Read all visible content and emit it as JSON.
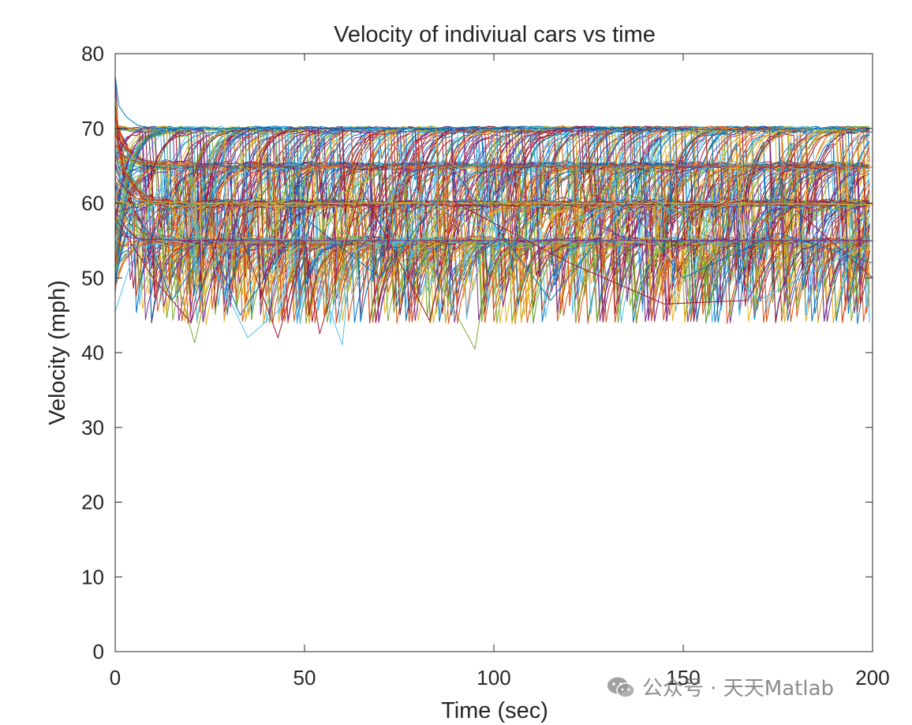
{
  "chart_data": {
    "type": "line",
    "title": "Velocity of indiviual cars vs time",
    "xlabel": "Time (sec)",
    "ylabel": "Velocity (mph)",
    "xlim": [
      0,
      200
    ],
    "ylim": [
      0,
      80
    ],
    "xticks": [
      0,
      50,
      100,
      150,
      200
    ],
    "yticks": [
      0,
      10,
      20,
      30,
      40,
      50,
      60,
      70,
      80
    ],
    "grid": false,
    "legend": "none",
    "series_count_note": "many overlapping car velocity traces",
    "colors": [
      "#0072BD",
      "#D95319",
      "#EDB120",
      "#7E2F8E",
      "#77AC30",
      "#4DBEEE",
      "#A2142F"
    ],
    "plateaus": [
      70,
      65,
      60,
      55
    ],
    "series": [
      {
        "x": [
          0,
          1,
          3,
          6,
          10,
          30,
          60,
          100,
          130,
          160,
          190,
          200
        ],
        "y": [
          77,
          73,
          71.5,
          70.4,
          70,
          70,
          70,
          70,
          70,
          69.8,
          70,
          69.5
        ]
      },
      {
        "x": [
          0,
          2,
          5,
          10,
          20,
          50,
          100,
          150,
          200
        ],
        "y": [
          72,
          68,
          66,
          65.2,
          65,
          65,
          65,
          65,
          64.8
        ]
      },
      {
        "x": [
          0,
          3,
          8,
          20,
          50,
          100,
          150,
          200
        ],
        "y": [
          63,
          61,
          60.3,
          60,
          60,
          60,
          60,
          59.8
        ]
      },
      {
        "x": [
          0,
          2,
          6,
          20,
          50,
          100,
          130,
          200
        ],
        "y": [
          57,
          55.6,
          55.2,
          55,
          55,
          55,
          55,
          55
        ]
      },
      {
        "x": [
          0,
          8,
          15,
          21,
          24,
          30,
          40,
          55,
          70,
          95,
          98,
          110,
          130,
          160,
          200
        ],
        "y": [
          66,
          61,
          52,
          41.3,
          48,
          57,
          62,
          60,
          64,
          40.5,
          50,
          58,
          62,
          57,
          60
        ]
      },
      {
        "x": [
          0,
          6,
          12,
          20,
          35,
          44,
          48,
          60,
          62,
          75,
          90,
          110,
          140,
          170,
          200
        ],
        "y": [
          45.5,
          55,
          62,
          58,
          42,
          46,
          58,
          41,
          52,
          63,
          58,
          55,
          62,
          47,
          55
        ]
      },
      {
        "x": [
          0,
          10,
          20,
          30,
          43,
          50,
          54,
          65,
          83,
          90,
          120,
          145,
          167,
          180,
          200
        ],
        "y": [
          58,
          50,
          44,
          60,
          42,
          55,
          42.5,
          62,
          44.3,
          60,
          52,
          46.5,
          47,
          59,
          50
        ]
      },
      {
        "x": [
          0,
          5,
          15,
          25,
          33,
          50,
          70,
          90,
          115,
          135,
          150,
          175,
          200
        ],
        "y": [
          50,
          60,
          47,
          55,
          45,
          58,
          50,
          64,
          47,
          60,
          50,
          56,
          52
        ]
      }
    ]
  },
  "watermark": {
    "text": "公众号 · 天天Matlab"
  }
}
